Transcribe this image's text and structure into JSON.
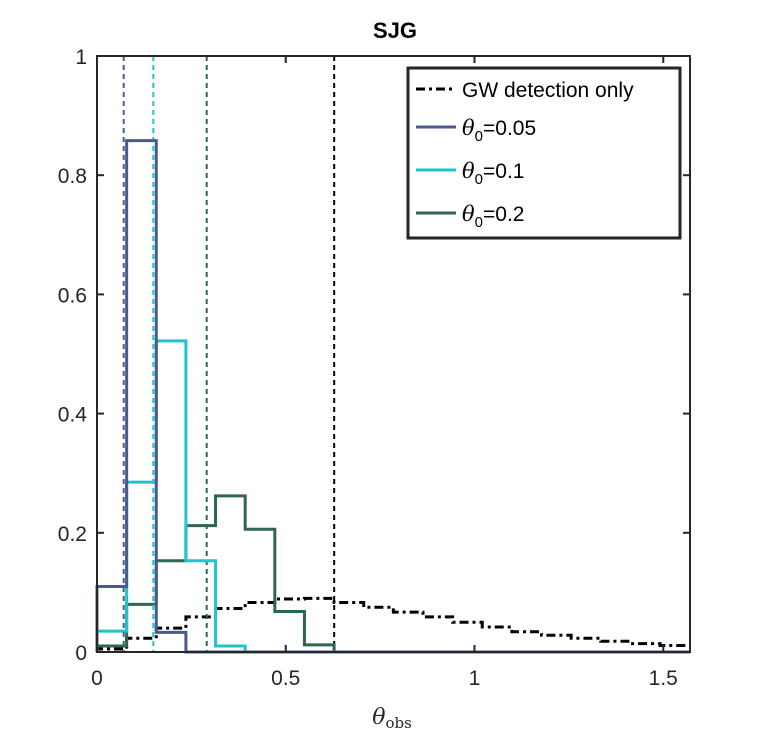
{
  "chart_data": {
    "type": "histogram",
    "title": "SJG",
    "xlabel": "θ",
    "xlabel_subscript": "obs",
    "ylabel": "",
    "xlim": [
      0,
      1.5708
    ],
    "ylim": [
      0,
      1
    ],
    "xticks": [
      0,
      0.5,
      1,
      1.5
    ],
    "xtick_labels": [
      "0",
      "0.5",
      "1",
      "1.5"
    ],
    "yticks": [
      0,
      0.2,
      0.4,
      0.6,
      0.8,
      1
    ],
    "ytick_labels": [
      "0",
      "0.2",
      "0.4",
      "0.6",
      "0.8",
      "1"
    ],
    "grid": false,
    "legend_position": "top-right",
    "bin_width": 0.0785,
    "series": [
      {
        "name": "GW detection only",
        "color": "#000000",
        "style": "dashdot",
        "values": [
          0.005,
          0.023,
          0.04,
          0.059,
          0.073,
          0.083,
          0.089,
          0.09,
          0.083,
          0.075,
          0.067,
          0.059,
          0.05,
          0.042,
          0.034,
          0.028,
          0.023,
          0.018,
          0.014,
          0.011
        ],
        "median_line": 0.6283
      },
      {
        "name_symbol": "θ",
        "name_sub": "0",
        "name_value": "=0.05",
        "color": "#4b5a8c",
        "style": "solid",
        "values": [
          0.11,
          0.858,
          0.033,
          0.0,
          0.0,
          0.0,
          0.0,
          0.0,
          0.0,
          0.0,
          0.0,
          0.0,
          0.0,
          0.0,
          0.0,
          0.0,
          0.0,
          0.0,
          0.0,
          0.0
        ],
        "median_line": 0.0707
      },
      {
        "name_symbol": "θ",
        "name_sub": "0",
        "name_value": "=0.1",
        "color": "#1fc4cc",
        "style": "solid",
        "values": [
          0.035,
          0.285,
          0.522,
          0.153,
          0.01,
          0.0,
          0.0,
          0.0,
          0.0,
          0.0,
          0.0,
          0.0,
          0.0,
          0.0,
          0.0,
          0.0,
          0.0,
          0.0,
          0.0,
          0.0
        ],
        "median_line": 0.1492
      },
      {
        "name_symbol": "θ",
        "name_sub": "0",
        "name_value": "=0.2",
        "color": "#2e6650",
        "style": "solid",
        "values": [
          0.01,
          0.08,
          0.153,
          0.212,
          0.262,
          0.206,
          0.068,
          0.012,
          0.0,
          0.0,
          0.0,
          0.0,
          0.0,
          0.0,
          0.0,
          0.0,
          0.0,
          0.0,
          0.0,
          0.0
        ],
        "median_line": 0.2906
      }
    ]
  }
}
